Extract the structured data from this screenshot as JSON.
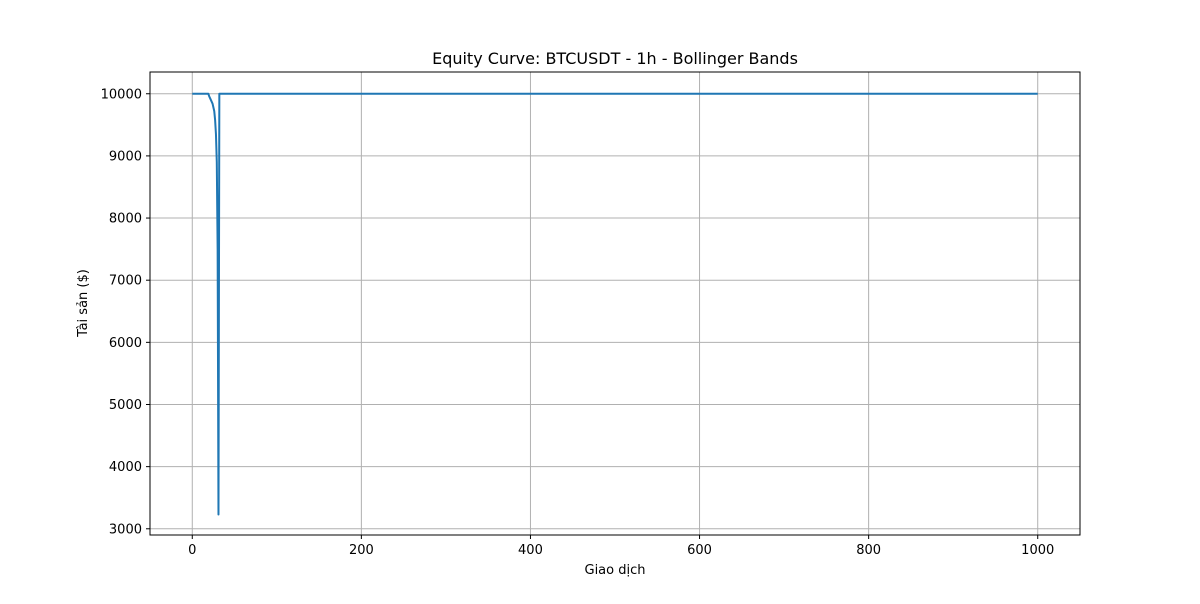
{
  "chart_data": {
    "type": "line",
    "title": "Equity Curve: BTCUSDT - 1h - Bollinger Bands",
    "xlabel": "Giao dịch",
    "ylabel": "Tài sản ($)",
    "xlim": [
      -50,
      1050
    ],
    "ylim": [
      2900,
      10350
    ],
    "xticks": [
      0,
      200,
      400,
      600,
      800,
      1000
    ],
    "xtick_labels": [
      "0",
      "200",
      "400",
      "600",
      "800",
      "1000"
    ],
    "yticks": [
      3000,
      4000,
      5000,
      6000,
      7000,
      8000,
      9000,
      10000
    ],
    "ytick_labels": [
      "3000",
      "4000",
      "5000",
      "6000",
      "7000",
      "8000",
      "9000",
      "10000"
    ],
    "grid": true,
    "series": [
      {
        "color": "#1f77b4",
        "x": [
          0,
          19,
          20,
          22,
          24,
          26,
          27,
          28,
          29,
          30,
          31,
          32,
          1000
        ],
        "y": [
          10000,
          10000,
          9960,
          9900,
          9840,
          9720,
          9580,
          9350,
          8900,
          7500,
          3230,
          10000,
          10000
        ]
      }
    ]
  }
}
